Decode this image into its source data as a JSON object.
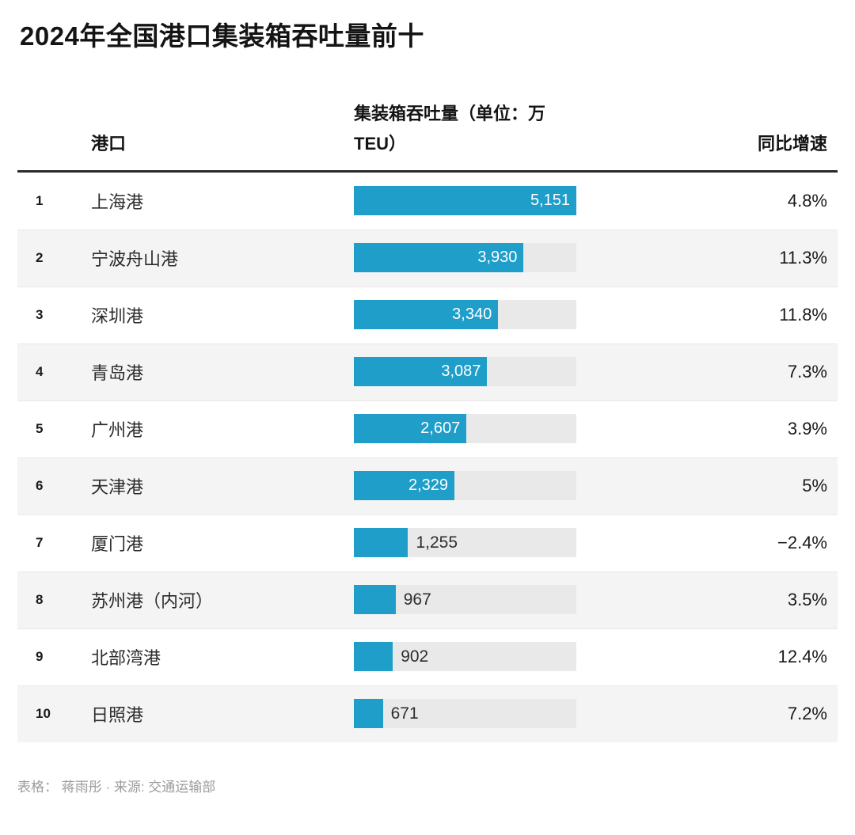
{
  "title": "2024年全国港口集装箱吞吐量前十",
  "header": {
    "port": "港口",
    "throughput": "集装箱吞吐量（单位：万TEU）",
    "growth": "同比增速"
  },
  "rows": [
    {
      "rank": "1",
      "port": "上海港",
      "value": 5151,
      "value_label": "5,151",
      "growth": "4.8%"
    },
    {
      "rank": "2",
      "port": "宁波舟山港",
      "value": 3930,
      "value_label": "3,930",
      "growth": "11.3%"
    },
    {
      "rank": "3",
      "port": "深圳港",
      "value": 3340,
      "value_label": "3,340",
      "growth": "11.8%"
    },
    {
      "rank": "4",
      "port": "青岛港",
      "value": 3087,
      "value_label": "3,087",
      "growth": "7.3%"
    },
    {
      "rank": "5",
      "port": "广州港",
      "value": 2607,
      "value_label": "2,607",
      "growth": "3.9%"
    },
    {
      "rank": "6",
      "port": "天津港",
      "value": 2329,
      "value_label": "2,329",
      "growth": "5%"
    },
    {
      "rank": "7",
      "port": "厦门港",
      "value": 1255,
      "value_label": "1,255",
      "growth": "−2.4%"
    },
    {
      "rank": "8",
      "port": "苏州港（内河）",
      "value": 967,
      "value_label": "967",
      "growth": "3.5%"
    },
    {
      "rank": "9",
      "port": "北部湾港",
      "value": 902,
      "value_label": "902",
      "growth": "12.4%"
    },
    {
      "rank": "10",
      "port": "日照港",
      "value": 671,
      "value_label": "671",
      "growth": "7.2%"
    }
  ],
  "footer": "表格： 蒋雨彤 · 来源: 交通运输部",
  "colors": {
    "bar": "#1f9ec9",
    "track": "#e9e9e9",
    "stripe": "#f4f4f4",
    "header_rule": "#2b2b2b",
    "row_separator": "#e9e9e9"
  },
  "chart_data": {
    "type": "bar",
    "orientation": "horizontal",
    "title": "2024年全国港口集装箱吞吐量前十",
    "categories": [
      "上海港",
      "宁波舟山港",
      "深圳港",
      "青岛港",
      "广州港",
      "天津港",
      "厦门港",
      "苏州港（内河）",
      "北部湾港",
      "日照港"
    ],
    "series": [
      {
        "name": "集装箱吞吐量（单位：万TEU）",
        "values": [
          5151,
          3930,
          3340,
          3087,
          2607,
          2329,
          1255,
          967,
          902,
          671
        ]
      },
      {
        "name": "同比增速（%）",
        "values": [
          4.8,
          11.3,
          11.8,
          7.3,
          3.9,
          5,
          -2.4,
          3.5,
          12.4,
          7.2
        ]
      }
    ],
    "xlim": [
      0,
      5151
    ],
    "grid": false,
    "legend_position": "none",
    "value_labels": "on-bar",
    "source": "交通运输部",
    "credit": "表格：蒋雨彤"
  }
}
